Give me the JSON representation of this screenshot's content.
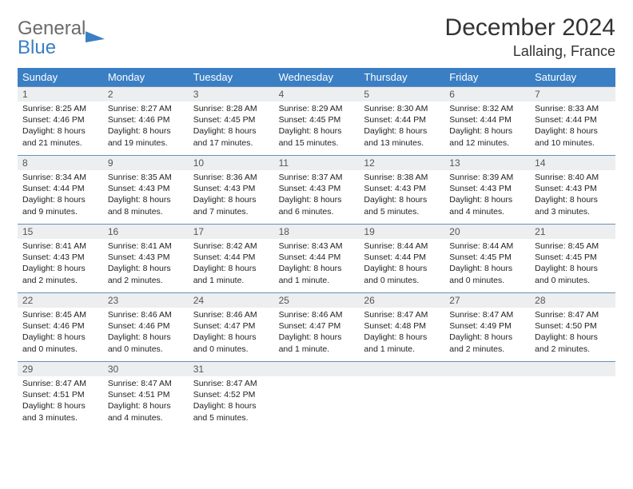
{
  "logo": {
    "word1": "General",
    "word2": "Blue"
  },
  "title": "December 2024",
  "location": "Lallaing, France",
  "header_bg": "#3a7fc4",
  "daynum_bg": "#eceef0",
  "border_color": "#6a8fb8",
  "weekdays": [
    "Sunday",
    "Monday",
    "Tuesday",
    "Wednesday",
    "Thursday",
    "Friday",
    "Saturday"
  ],
  "days": [
    {
      "num": 1,
      "sunrise": "8:25 AM",
      "sunset": "4:46 PM",
      "daylight": "8 hours and 21 minutes."
    },
    {
      "num": 2,
      "sunrise": "8:27 AM",
      "sunset": "4:46 PM",
      "daylight": "8 hours and 19 minutes."
    },
    {
      "num": 3,
      "sunrise": "8:28 AM",
      "sunset": "4:45 PM",
      "daylight": "8 hours and 17 minutes."
    },
    {
      "num": 4,
      "sunrise": "8:29 AM",
      "sunset": "4:45 PM",
      "daylight": "8 hours and 15 minutes."
    },
    {
      "num": 5,
      "sunrise": "8:30 AM",
      "sunset": "4:44 PM",
      "daylight": "8 hours and 13 minutes."
    },
    {
      "num": 6,
      "sunrise": "8:32 AM",
      "sunset": "4:44 PM",
      "daylight": "8 hours and 12 minutes."
    },
    {
      "num": 7,
      "sunrise": "8:33 AM",
      "sunset": "4:44 PM",
      "daylight": "8 hours and 10 minutes."
    },
    {
      "num": 8,
      "sunrise": "8:34 AM",
      "sunset": "4:44 PM",
      "daylight": "8 hours and 9 minutes."
    },
    {
      "num": 9,
      "sunrise": "8:35 AM",
      "sunset": "4:43 PM",
      "daylight": "8 hours and 8 minutes."
    },
    {
      "num": 10,
      "sunrise": "8:36 AM",
      "sunset": "4:43 PM",
      "daylight": "8 hours and 7 minutes."
    },
    {
      "num": 11,
      "sunrise": "8:37 AM",
      "sunset": "4:43 PM",
      "daylight": "8 hours and 6 minutes."
    },
    {
      "num": 12,
      "sunrise": "8:38 AM",
      "sunset": "4:43 PM",
      "daylight": "8 hours and 5 minutes."
    },
    {
      "num": 13,
      "sunrise": "8:39 AM",
      "sunset": "4:43 PM",
      "daylight": "8 hours and 4 minutes."
    },
    {
      "num": 14,
      "sunrise": "8:40 AM",
      "sunset": "4:43 PM",
      "daylight": "8 hours and 3 minutes."
    },
    {
      "num": 15,
      "sunrise": "8:41 AM",
      "sunset": "4:43 PM",
      "daylight": "8 hours and 2 minutes."
    },
    {
      "num": 16,
      "sunrise": "8:41 AM",
      "sunset": "4:43 PM",
      "daylight": "8 hours and 2 minutes."
    },
    {
      "num": 17,
      "sunrise": "8:42 AM",
      "sunset": "4:44 PM",
      "daylight": "8 hours and 1 minute."
    },
    {
      "num": 18,
      "sunrise": "8:43 AM",
      "sunset": "4:44 PM",
      "daylight": "8 hours and 1 minute."
    },
    {
      "num": 19,
      "sunrise": "8:44 AM",
      "sunset": "4:44 PM",
      "daylight": "8 hours and 0 minutes."
    },
    {
      "num": 20,
      "sunrise": "8:44 AM",
      "sunset": "4:45 PM",
      "daylight": "8 hours and 0 minutes."
    },
    {
      "num": 21,
      "sunrise": "8:45 AM",
      "sunset": "4:45 PM",
      "daylight": "8 hours and 0 minutes."
    },
    {
      "num": 22,
      "sunrise": "8:45 AM",
      "sunset": "4:46 PM",
      "daylight": "8 hours and 0 minutes."
    },
    {
      "num": 23,
      "sunrise": "8:46 AM",
      "sunset": "4:46 PM",
      "daylight": "8 hours and 0 minutes."
    },
    {
      "num": 24,
      "sunrise": "8:46 AM",
      "sunset": "4:47 PM",
      "daylight": "8 hours and 0 minutes."
    },
    {
      "num": 25,
      "sunrise": "8:46 AM",
      "sunset": "4:47 PM",
      "daylight": "8 hours and 1 minute."
    },
    {
      "num": 26,
      "sunrise": "8:47 AM",
      "sunset": "4:48 PM",
      "daylight": "8 hours and 1 minute."
    },
    {
      "num": 27,
      "sunrise": "8:47 AM",
      "sunset": "4:49 PM",
      "daylight": "8 hours and 2 minutes."
    },
    {
      "num": 28,
      "sunrise": "8:47 AM",
      "sunset": "4:50 PM",
      "daylight": "8 hours and 2 minutes."
    },
    {
      "num": 29,
      "sunrise": "8:47 AM",
      "sunset": "4:51 PM",
      "daylight": "8 hours and 3 minutes."
    },
    {
      "num": 30,
      "sunrise": "8:47 AM",
      "sunset": "4:51 PM",
      "daylight": "8 hours and 4 minutes."
    },
    {
      "num": 31,
      "sunrise": "8:47 AM",
      "sunset": "4:52 PM",
      "daylight": "8 hours and 5 minutes."
    }
  ],
  "trailing_empty": 4,
  "labels": {
    "sunrise": "Sunrise:",
    "sunset": "Sunset:",
    "daylight": "Daylight:"
  }
}
